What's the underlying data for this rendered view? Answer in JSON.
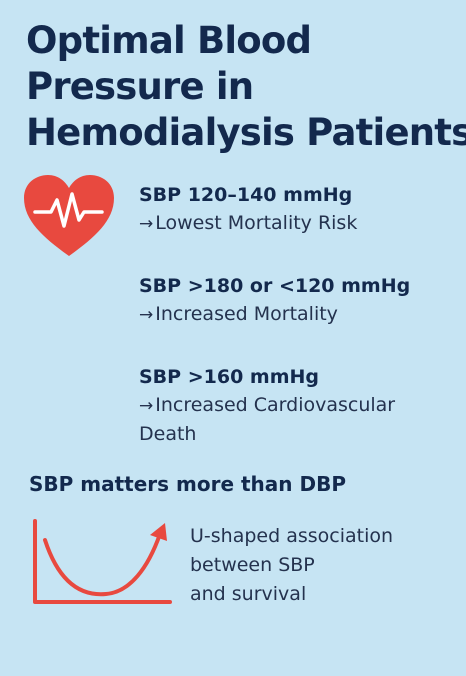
{
  "title": {
    "line1": "Optimal Blood",
    "line2": "Pressure in",
    "line3": "Hemodialysis Patients"
  },
  "icons": {
    "heart": "heart-with-pulse-icon",
    "chart": "u-shaped-curve-icon",
    "heart_color": "#e8493f",
    "curve_color": "#e8493f"
  },
  "findings": [
    {
      "heading": "SBP 120–140 mmHg",
      "arrow": "→",
      "text": "Lowest Mortality Risk"
    },
    {
      "heading": "SBP >180 or <120 mmHg",
      "arrow": "→",
      "text": "Increased Mortality"
    },
    {
      "heading": "SBP >160 mmHg",
      "arrow": "→",
      "text": "Increased Cardiovascular Death"
    }
  ],
  "emphasis": "SBP matters more than DBP",
  "u_caption": {
    "line1": "U-shaped association",
    "line2": "between SBP",
    "line3": "and survival"
  },
  "colors": {
    "background": "#c6e4f3",
    "title": "#13294d",
    "accent": "#e8493f"
  }
}
